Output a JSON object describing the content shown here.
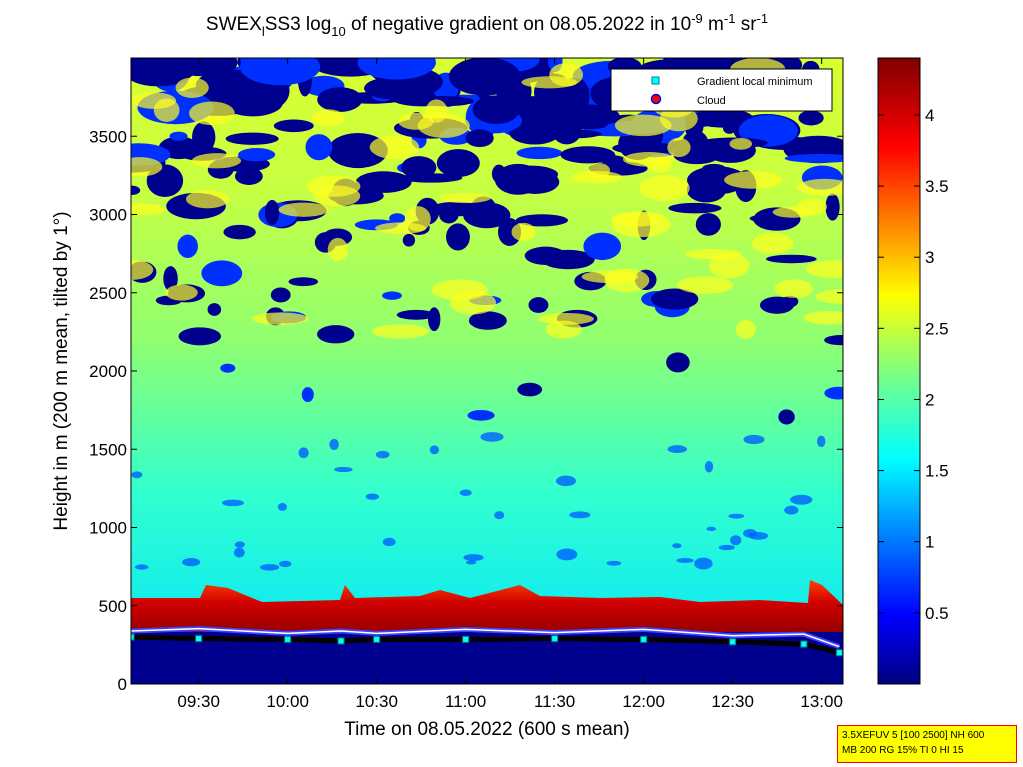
{
  "chart_data": {
    "type": "heatmap",
    "title": {
      "prefix": "SWEX",
      "sub1": "l",
      "mid": "SS3 log",
      "sub2": "10",
      "main": " of negative gradient on 08.05.2022 in 10",
      "sup1": "-9",
      "unit1": " m",
      "sup2": "-1",
      "unit2": " sr",
      "sup3": "-1"
    },
    "xlabel": "Time on 08.05.2022 (600 s mean)",
    "ylabel": "Height in m (200 m mean, tilted by 1°)",
    "x_ticks": [
      {
        "label": "09:30",
        "t": 9.5
      },
      {
        "label": "10:00",
        "t": 10.0
      },
      {
        "label": "10:30",
        "t": 10.5
      },
      {
        "label": "11:00",
        "t": 11.0
      },
      {
        "label": "11:30",
        "t": 11.5
      },
      {
        "label": "12:00",
        "t": 12.0
      },
      {
        "label": "12:30",
        "t": 12.5
      },
      {
        "label": "13:00",
        "t": 13.0
      }
    ],
    "y_ticks": [
      0,
      500,
      1000,
      1500,
      2000,
      2500,
      3000,
      3500
    ],
    "colorbar_ticks": [
      "0.5",
      "1",
      "1.5",
      "2",
      "2.5",
      "3",
      "3.5",
      "4"
    ],
    "colorbar_range": [
      0,
      4.4
    ],
    "legend": [
      {
        "label": "Gradient local minimum",
        "color": "#00ffff",
        "marker": "square"
      },
      {
        "label": "Cloud",
        "color": "#ff0000",
        "marker": "circle"
      }
    ],
    "legend_position": "top-right",
    "colormap": "jet",
    "gradient_minimum_height": [
      [
        9.12,
        300
      ],
      [
        9.5,
        290
      ],
      [
        10.0,
        285
      ],
      [
        10.3,
        275
      ],
      [
        10.5,
        285
      ],
      [
        11.0,
        285
      ],
      [
        11.5,
        290
      ],
      [
        12.0,
        285
      ],
      [
        12.5,
        270
      ],
      [
        12.9,
        255
      ],
      [
        13.1,
        200
      ]
    ]
  },
  "info_box": {
    "line1": "3.5XEFUV 5 [100 2500] NH 600",
    "line2": "MB 200 RG 15% TI 0 HI 15"
  }
}
